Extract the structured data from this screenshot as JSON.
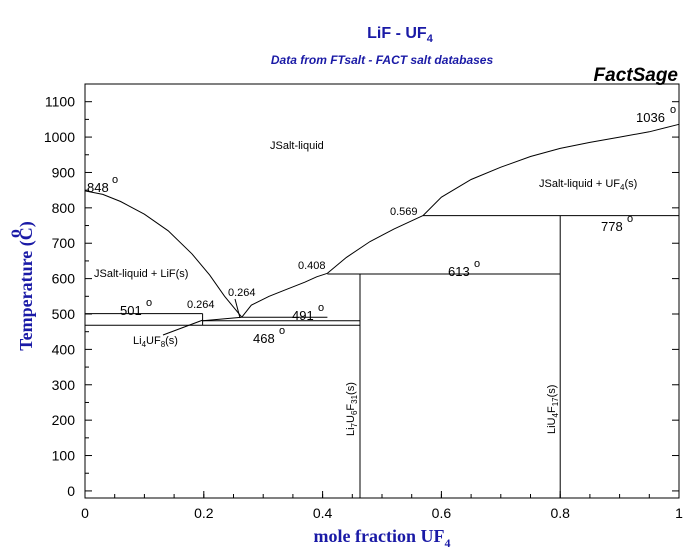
{
  "chart_data": {
    "type": "line",
    "title_main": "LiF - UF",
    "title_sub": "4",
    "subtitle": "Data from FTsalt - FACT salt databases",
    "brand": "FactSage",
    "xlabel_main": "mole fraction UF",
    "xlabel_sub": "4",
    "ylabel": "Temperature (C)",
    "ylabel_super": "o",
    "xlim": [
      0,
      1
    ],
    "ylim": [
      -20,
      1150
    ],
    "x_ticks": [
      "0",
      "0.2",
      "0.4",
      "0.6",
      "0.8",
      "1"
    ],
    "x_tick_values": [
      0,
      0.2,
      0.4,
      0.6,
      0.8,
      1
    ],
    "y_ticks": [
      "0",
      "100",
      "200",
      "300",
      "400",
      "500",
      "600",
      "700",
      "800",
      "900",
      "1000",
      "1100"
    ],
    "y_tick_values": [
      0,
      100,
      200,
      300,
      400,
      500,
      600,
      700,
      800,
      900,
      1000,
      1100
    ],
    "series": [
      {
        "x": [
          0,
          0.03,
          0.06,
          0.1,
          0.14,
          0.18,
          0.21,
          0.235,
          0.264
        ],
        "y": [
          848,
          838,
          818,
          782,
          735,
          670,
          610,
          550,
          491
        ]
      },
      {
        "x": [
          0.264,
          0.28,
          0.31,
          0.34,
          0.37,
          0.39,
          0.408
        ],
        "y": [
          491,
          525,
          550,
          570,
          590,
          605,
          615
        ]
      },
      {
        "x": [
          0.408,
          0.44,
          0.48,
          0.52,
          0.569
        ],
        "y": [
          615,
          660,
          705,
          740,
          778
        ]
      },
      {
        "x": [
          0.569,
          0.6,
          0.65,
          0.7,
          0.75,
          0.8,
          0.85,
          0.9,
          0.95,
          1.0
        ],
        "y": [
          778,
          830,
          880,
          915,
          945,
          968,
          985,
          1000,
          1015,
          1036
        ]
      },
      {
        "x": [
          0.264,
          0.408
        ],
        "y": [
          491,
          491
        ]
      },
      {
        "x": [
          0.198,
          0.264
        ],
        "y": [
          481,
          491
        ]
      },
      {
        "x": [
          0,
          0.198
        ],
        "y": [
          501,
          501
        ]
      },
      {
        "x": [
          0,
          0.463
        ],
        "y": [
          468,
          468
        ]
      },
      {
        "x": [
          0.198,
          0.198
        ],
        "y": [
          468,
          501
        ]
      },
      {
        "x": [
          0.198,
          0.463
        ],
        "y": [
          481,
          481
        ]
      },
      {
        "x": [
          0.408,
          0.8
        ],
        "y": [
          613,
          613
        ]
      },
      {
        "x": [
          0.569,
          1.0
        ],
        "y": [
          778,
          778
        ]
      },
      {
        "x": [
          0.463,
          0.463
        ],
        "y": [
          -20,
          613
        ]
      },
      {
        "x": [
          0.8,
          0.8
        ],
        "y": [
          -20,
          778
        ]
      }
    ],
    "annotations": {
      "t1036": "1036",
      "t848": "848",
      "t778": "778",
      "t613": "613",
      "t501": "501",
      "t491": "491",
      "t468": "468",
      "deg": "o",
      "c0569": "0.569",
      "c0408": "0.408",
      "c0264a": "0.264",
      "c0264b": "0.264",
      "liquid": "JSalt-liquid",
      "liq_lif": "JSalt-liquid + LiF(s)",
      "liq_uf4": "JSalt-liquid + UF",
      "liq_uf4_sub": "4",
      "liq_uf4_tail": "(s)",
      "li4uf8": [
        "Li",
        "4",
        "UF",
        "8",
        "(s)"
      ],
      "li7u6f31": [
        "Li",
        "7",
        "U",
        "6",
        "F",
        "31",
        "(s)"
      ],
      "liu4f17": [
        "LiU",
        "4",
        "F",
        "17",
        "(s)"
      ]
    }
  }
}
